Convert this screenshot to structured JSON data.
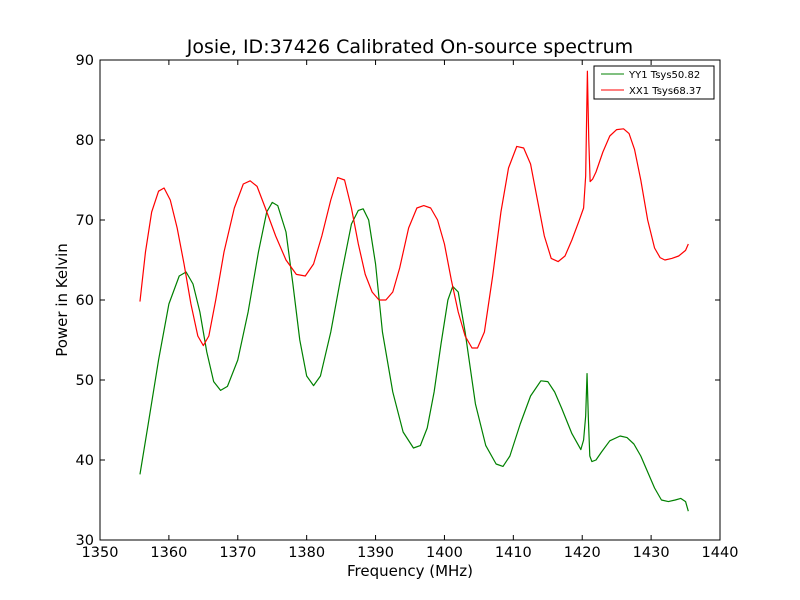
{
  "chart_data": {
    "type": "line",
    "title": "Josie, ID:37426 Calibrated On-source spectrum",
    "xlabel": "Frequency (MHz)",
    "ylabel": "Power in Kelvin",
    "xlim": [
      1350,
      1440
    ],
    "ylim": [
      30,
      90
    ],
    "xticks": [
      "1350",
      "1360",
      "1370",
      "1380",
      "1390",
      "1400",
      "1410",
      "1420",
      "1430",
      "1440"
    ],
    "yticks": [
      "30",
      "40",
      "50",
      "60",
      "70",
      "80",
      "90"
    ],
    "grid": false,
    "legend_position": "top-right",
    "series": [
      {
        "name": "YY1 Tsys50.82",
        "color": "#008000",
        "x": [
          1355.8,
          1357,
          1358.5,
          1360,
          1361.5,
          1362.5,
          1363.5,
          1364.5,
          1365.5,
          1366.5,
          1367.5,
          1368.5,
          1370,
          1371.5,
          1373,
          1374.2,
          1375,
          1375.8,
          1377,
          1378,
          1379,
          1380,
          1381,
          1382,
          1383.5,
          1385,
          1386.5,
          1387.5,
          1388.2,
          1389,
          1390,
          1391,
          1392.5,
          1394,
          1395.5,
          1396.5,
          1397.5,
          1398.5,
          1399.5,
          1400.5,
          1401.2,
          1402,
          1403,
          1404.5,
          1406,
          1407.5,
          1408.5,
          1409.5,
          1411,
          1412.5,
          1414,
          1415,
          1416,
          1417,
          1418.5,
          1419.8,
          1420.2,
          1420.5,
          1420.7,
          1420.9,
          1421.1,
          1421.4,
          1422,
          1422.8,
          1424,
          1425.5,
          1426.5,
          1427.5,
          1428.5,
          1429.5,
          1430.5,
          1431.5,
          1432.5,
          1433.5,
          1434.3,
          1435,
          1435.4
        ],
        "y": [
          38.2,
          44.5,
          52.5,
          59.5,
          63.0,
          63.5,
          62.0,
          58.5,
          53.5,
          49.8,
          48.7,
          49.2,
          52.5,
          58.5,
          66.0,
          71.0,
          72.2,
          71.8,
          68.5,
          62.0,
          55.0,
          50.5,
          49.3,
          50.5,
          56.0,
          63.0,
          69.5,
          71.2,
          71.4,
          70.0,
          64.5,
          56.0,
          48.5,
          43.5,
          41.5,
          41.8,
          44.0,
          48.5,
          54.5,
          60.0,
          61.7,
          61.0,
          56.0,
          47.0,
          41.8,
          39.5,
          39.2,
          40.5,
          44.5,
          48.0,
          49.9,
          49.8,
          48.5,
          46.5,
          43.3,
          41.3,
          42.5,
          45.5,
          50.8,
          45.0,
          40.5,
          39.8,
          40.0,
          41.0,
          42.4,
          43.0,
          42.8,
          42.0,
          40.5,
          38.5,
          36.5,
          35.0,
          34.8,
          35.0,
          35.2,
          34.8,
          33.6
        ]
      },
      {
        "name": "XX1 Tsys68.37",
        "color": "#ff0000",
        "x": [
          1355.8,
          1356.6,
          1357.5,
          1358.5,
          1359.3,
          1360.2,
          1361.2,
          1362.2,
          1363.2,
          1364.2,
          1365,
          1365.8,
          1366.8,
          1368,
          1369.5,
          1370.8,
          1371.8,
          1372.8,
          1374,
          1375.5,
          1377,
          1378.5,
          1379.8,
          1381,
          1382.2,
          1383.5,
          1384.5,
          1385.5,
          1386.5,
          1387.5,
          1388.5,
          1389.5,
          1390.5,
          1391.5,
          1392.5,
          1393.5,
          1394.8,
          1396,
          1397,
          1398,
          1399,
          1400,
          1401,
          1402,
          1403,
          1404,
          1404.8,
          1405.8,
          1407,
          1408.2,
          1409.3,
          1410.5,
          1411.5,
          1412.5,
          1413.5,
          1414.5,
          1415.5,
          1416.5,
          1417.5,
          1418.5,
          1419.5,
          1420.2,
          1420.5,
          1420.75,
          1420.95,
          1421.15,
          1421.5,
          1422,
          1423,
          1424,
          1425,
          1426,
          1426.8,
          1427.6,
          1428.5,
          1429.5,
          1430.5,
          1431.3,
          1432,
          1433,
          1434,
          1435,
          1435.4
        ],
        "y": [
          59.8,
          66.0,
          71.0,
          73.6,
          74.0,
          72.5,
          69.0,
          64.5,
          59.5,
          55.5,
          54.3,
          55.5,
          60.0,
          66.0,
          71.5,
          74.5,
          74.9,
          74.2,
          71.5,
          68.0,
          65.0,
          63.2,
          63.0,
          64.5,
          68.0,
          72.5,
          75.3,
          75.0,
          71.5,
          67.0,
          63.2,
          61.0,
          60.0,
          60.0,
          61.0,
          64.0,
          69.0,
          71.5,
          71.8,
          71.5,
          70.0,
          67.0,
          62.5,
          58.5,
          55.5,
          54.0,
          54.0,
          56.0,
          63.0,
          71.0,
          76.5,
          79.2,
          79.0,
          77.0,
          72.5,
          68.0,
          65.2,
          64.8,
          65.5,
          67.5,
          69.8,
          71.5,
          75.5,
          88.6,
          80.0,
          74.8,
          75.1,
          76.0,
          78.5,
          80.5,
          81.3,
          81.4,
          80.8,
          78.8,
          75.0,
          70.0,
          66.5,
          65.3,
          65.0,
          65.2,
          65.5,
          66.2,
          67.0
        ]
      }
    ]
  }
}
